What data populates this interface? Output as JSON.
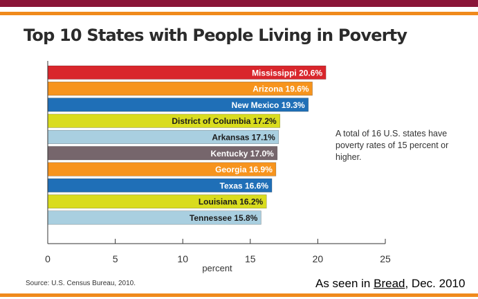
{
  "colors": {
    "top_band": "#8a1538",
    "rule": "#f08a1c",
    "bar_red": "#d9262c",
    "bar_orange": "#f7941d",
    "bar_blue": "#1f6fb7",
    "bar_yellow": "#d9dc1e",
    "bar_lightblue": "#a9cfe0",
    "bar_gray": "#76666c"
  },
  "chart_data": {
    "type": "bar",
    "orientation": "horizontal",
    "title": "Top 10 States with People Living in Poverty",
    "xlabel": "percent",
    "xlim": [
      0,
      25
    ],
    "xticks": [
      "0",
      "5",
      "10",
      "15",
      "20",
      "25"
    ],
    "categories": [
      "Mississippi",
      "Arizona",
      "New Mexico",
      "District of Columbia",
      "Arkansas",
      "Kentucky",
      "Georgia",
      "Texas",
      "Louisiana",
      "Tennessee"
    ],
    "values": [
      20.6,
      19.6,
      19.3,
      17.2,
      17.1,
      17.0,
      16.9,
      16.6,
      16.2,
      15.8
    ],
    "labels": [
      "Mississippi 20.6%",
      "Arizona 19.6%",
      "New Mexico 19.3%",
      "District of Columbia 17.2%",
      "Arkansas 17.1%",
      "Kentucky 17.0%",
      "Georgia 16.9%",
      "Texas 16.6%",
      "Louisiana 16.2%",
      "Tennessee 15.8%"
    ],
    "bar_colors": [
      "#d9262c",
      "#f7941d",
      "#1f6fb7",
      "#d9dc1e",
      "#a9cfe0",
      "#76666c",
      "#f7941d",
      "#1f6fb7",
      "#d9dc1e",
      "#a9cfe0"
    ],
    "label_colors": [
      "#ffffff",
      "#ffffff",
      "#ffffff",
      "#1a1a1a",
      "#1a1a1a",
      "#ffffff",
      "#ffffff",
      "#ffffff",
      "#1a1a1a",
      "#1a1a1a"
    ],
    "grid": false,
    "legend": "none"
  },
  "annotation": "A total of 16 U.S. states have poverty rates of 15 percent or higher.",
  "source": "Source: U.S. Census Bureau, 2010.",
  "credit": {
    "prefix": "As seen in ",
    "publication": "Bread",
    "suffix": ", Dec. 2010"
  }
}
